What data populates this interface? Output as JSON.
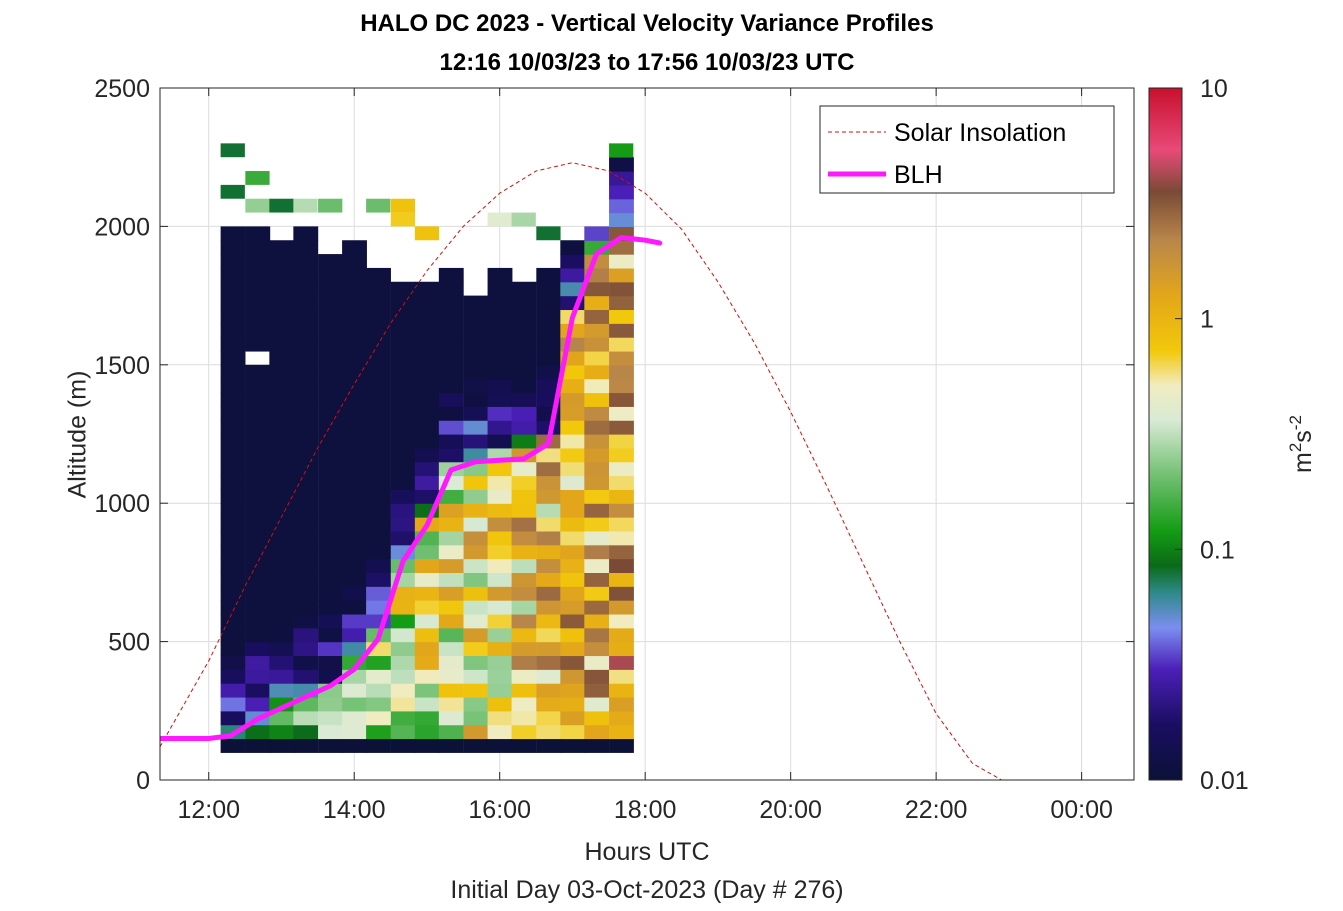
{
  "titles": {
    "line1": "HALO DC 2023 - Vertical Velocity Variance Profiles",
    "line2": "12:16 10/03/23 to 17:56 10/03/23  UTC"
  },
  "chart_data": {
    "type": "heatmap",
    "title": "HALO DC 2023 - Vertical Velocity Variance Profiles",
    "subtitle": "12:16 10/03/23 to 17:56 10/03/23  UTC",
    "xlabel": "Hours UTC",
    "ylabel": "Altitude (m)",
    "note": "Initial Day 03-Oct-2023 (Day # 276)",
    "x_unit": "hours UTC (continuous from 00:00 on 03-Oct-2023)",
    "xlim": [
      11.33,
      24.72
    ],
    "ylim": [
      0,
      2500
    ],
    "xticks": [
      12,
      14,
      16,
      18,
      20,
      22,
      24
    ],
    "xtick_labels": [
      "12:00",
      "14:00",
      "16:00",
      "18:00",
      "20:00",
      "22:00",
      "00:00"
    ],
    "yticks": [
      0,
      500,
      1000,
      1500,
      2000,
      2500
    ],
    "grid": true,
    "legend_position": "top-right",
    "colorbar": {
      "label": "m²s⁻²",
      "label_base": "m",
      "label_exp1": "2",
      "label_mid": "s",
      "label_exp2": "-2",
      "scale": "log",
      "range": [
        0.01,
        10
      ],
      "ticks": [
        0.01,
        0.1,
        1,
        10
      ],
      "tick_labels": [
        "0.01",
        "0.1",
        "1",
        "10"
      ]
    },
    "heatmap": {
      "times": [
        12.33,
        12.67,
        13.0,
        13.33,
        13.67,
        14.0,
        14.33,
        14.67,
        15.0,
        15.33,
        15.67,
        16.0,
        16.33,
        16.67,
        17.0,
        17.33,
        17.67
      ],
      "altitude_bin_m": 50,
      "altitude_bottom_m": 100,
      "rows_top": 2000,
      "valid_top_m": [
        2000,
        2000,
        1950,
        2000,
        1900,
        1950,
        1850,
        1800,
        1800,
        1850,
        1750,
        1850,
        1800,
        1850,
        1950,
        2000,
        2250
      ],
      "blh_tops_at_time": "per column: values are strongest below the BLH",
      "stray_high_cells": [
        {
          "time": 12.33,
          "alt": 2250,
          "value": 0.08
        },
        {
          "time": 12.33,
          "alt": 2100,
          "value": 0.08
        },
        {
          "time": 12.67,
          "alt": 2150,
          "value": 0.15
        },
        {
          "time": 12.67,
          "alt": 2050,
          "value": 0.25
        },
        {
          "time": 13.0,
          "alt": 2050,
          "value": 0.08
        },
        {
          "time": 13.33,
          "alt": 2050,
          "value": 0.3
        },
        {
          "time": 13.67,
          "alt": 2050,
          "value": 0.2
        },
        {
          "time": 14.33,
          "alt": 2050,
          "value": 0.2
        },
        {
          "time": 14.67,
          "alt": 2050,
          "value": 0.8
        },
        {
          "time": 14.67,
          "alt": 2000,
          "value": 0.7
        },
        {
          "time": 15.0,
          "alt": 1950,
          "value": 0.8
        },
        {
          "time": 16.0,
          "alt": 2000,
          "value": 0.4
        },
        {
          "time": 16.33,
          "alt": 2000,
          "value": 0.28
        },
        {
          "time": 16.67,
          "alt": 1950,
          "value": 0.08
        },
        {
          "time": 17.67,
          "alt": 2250,
          "value": 0.12
        }
      ],
      "missing_cells": [
        {
          "time": 12.67,
          "alt": 1500
        }
      ]
    },
    "series": [
      {
        "name": "Solar Insolation",
        "style": "dashed",
        "color": "#d01010",
        "x": [
          11.33,
          12.0,
          12.5,
          13.0,
          13.5,
          14.0,
          14.5,
          15.0,
          15.5,
          16.0,
          16.5,
          17.0,
          17.5,
          18.0,
          18.5,
          19.0,
          19.5,
          20.0,
          20.5,
          21.0,
          21.5,
          22.0,
          22.5,
          22.9,
          24.72
        ],
        "y": [
          120,
          430,
          700,
          950,
          1200,
          1430,
          1650,
          1840,
          2000,
          2120,
          2200,
          2230,
          2200,
          2120,
          1990,
          1800,
          1580,
          1330,
          1060,
          780,
          500,
          240,
          60,
          0,
          0
        ]
      },
      {
        "name": "BLH",
        "style": "solid",
        "color": "#ff19ff",
        "x": [
          11.33,
          12.0,
          12.3,
          12.67,
          13.0,
          13.33,
          13.67,
          14.0,
          14.33,
          14.67,
          15.0,
          15.33,
          15.67,
          16.0,
          16.33,
          16.67,
          17.0,
          17.33,
          17.67,
          18.0,
          18.2
        ],
        "y": [
          150,
          150,
          160,
          220,
          260,
          300,
          340,
          400,
          510,
          790,
          920,
          1120,
          1150,
          1155,
          1160,
          1215,
          1670,
          1900,
          1960,
          1950,
          1940
        ]
      }
    ]
  }
}
